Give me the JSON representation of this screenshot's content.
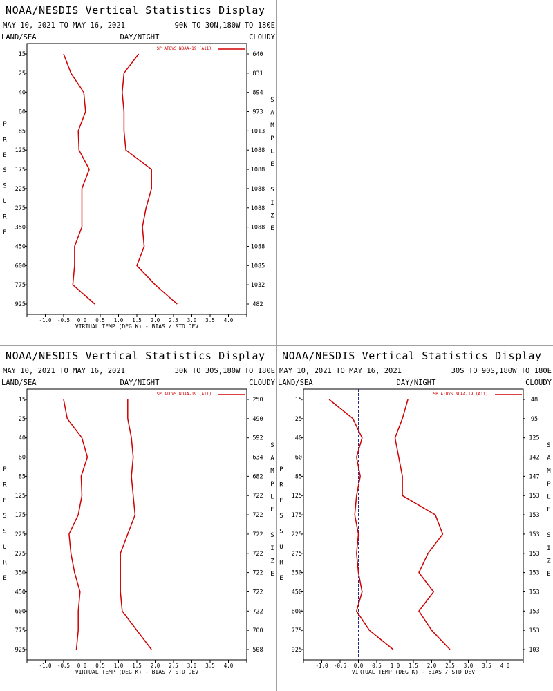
{
  "figure_title": "NOAA/NESDIS Vertical Statistics Display",
  "date_range": "MAY 10, 2021 TO MAY 16, 2021",
  "labels": {
    "land_sea": "LAND/SEA",
    "day_night": "DAY/NIGHT",
    "cloudy": "CLOUDY",
    "pressure_axis": "PRESSURE",
    "sample_axis": "SAMPLE SIZE",
    "x_axis": "VIRTUAL TEMP (DEG K) - BIAS / STD DEV",
    "legend": "SP ATOVS NOAA-19 (A11)"
  },
  "colors": {
    "series": "#d00000",
    "zero_line": "#2a2a8a",
    "divider": "#a0a0a0"
  },
  "chart_data": [
    {
      "type": "line",
      "region": "90N TO 30N,180W TO 180E",
      "pressure_levels": [
        "15",
        "25",
        "40",
        "60",
        "85",
        "125",
        "175",
        "225",
        "275",
        "350",
        "450",
        "600",
        "775",
        "925"
      ],
      "sample_sizes": [
        "640",
        "831",
        "894",
        "973",
        "1013",
        "1088",
        "1088",
        "1088",
        "1088",
        "1088",
        "1088",
        "1085",
        "1032",
        "482"
      ],
      "xlim": [
        -1.5,
        4.5
      ],
      "x_ticks": [
        "-1.0",
        "-0.5",
        "0.0",
        "0.5",
        "1.0",
        "1.5",
        "2.0",
        "2.5",
        "3.0",
        "3.5",
        "4.0"
      ],
      "series": [
        {
          "name": "BIAS",
          "values": [
            -0.5,
            -0.3,
            0.05,
            0.1,
            -0.1,
            -0.08,
            0.2,
            0.0,
            0.0,
            0.0,
            -0.2,
            -0.2,
            -0.25,
            0.35
          ]
        },
        {
          "name": "STD DEV",
          "values": [
            1.55,
            1.15,
            1.1,
            1.15,
            1.15,
            1.2,
            1.9,
            1.9,
            1.75,
            1.65,
            1.7,
            1.5,
            2.0,
            2.6
          ]
        }
      ]
    },
    {
      "type": "line",
      "region": "30N TO 30S,180W TO 180E",
      "pressure_levels": [
        "15",
        "25",
        "40",
        "60",
        "85",
        "125",
        "175",
        "225",
        "275",
        "350",
        "450",
        "600",
        "775",
        "925"
      ],
      "sample_sizes": [
        "250",
        "490",
        "592",
        "634",
        "682",
        "722",
        "722",
        "722",
        "722",
        "722",
        "722",
        "722",
        "700",
        "508"
      ],
      "xlim": [
        -1.5,
        4.5
      ],
      "x_ticks": [
        "-1.0",
        "-0.5",
        "0.0",
        "0.5",
        "1.0",
        "1.5",
        "2.0",
        "2.5",
        "3.0",
        "3.5",
        "4.0"
      ],
      "series": [
        {
          "name": "BIAS",
          "values": [
            -0.5,
            -0.4,
            0.0,
            0.15,
            -0.02,
            0.0,
            -0.1,
            -0.35,
            -0.3,
            -0.2,
            -0.05,
            -0.1,
            -0.1,
            -0.15
          ]
        },
        {
          "name": "STD DEV",
          "values": [
            1.25,
            1.25,
            1.35,
            1.4,
            1.35,
            1.4,
            1.45,
            1.25,
            1.05,
            1.05,
            1.05,
            1.1,
            1.5,
            1.9
          ]
        }
      ]
    },
    {
      "type": "line",
      "region": "30S TO 90S,180W TO 180E",
      "pressure_levels": [
        "15",
        "25",
        "40",
        "60",
        "85",
        "125",
        "175",
        "225",
        "275",
        "350",
        "450",
        "600",
        "775",
        "925"
      ],
      "sample_sizes": [
        "48",
        "95",
        "125",
        "142",
        "147",
        "153",
        "153",
        "153",
        "153",
        "153",
        "153",
        "153",
        "153",
        "103"
      ],
      "xlim": [
        -1.5,
        4.5
      ],
      "x_ticks": [
        "-1.0",
        "-0.5",
        "0.0",
        "0.5",
        "1.0",
        "1.5",
        "2.0",
        "2.5",
        "3.0",
        "3.5",
        "4.0"
      ],
      "series": [
        {
          "name": "BIAS",
          "values": [
            -0.8,
            -0.15,
            0.1,
            -0.05,
            0.05,
            -0.05,
            -0.1,
            0.0,
            -0.05,
            0.0,
            0.1,
            -0.05,
            0.3,
            0.95
          ]
        },
        {
          "name": "STD DEV",
          "values": [
            1.35,
            1.2,
            1.0,
            1.1,
            1.2,
            1.2,
            2.1,
            2.3,
            1.9,
            1.65,
            2.05,
            1.65,
            2.0,
            2.5
          ]
        }
      ]
    }
  ]
}
